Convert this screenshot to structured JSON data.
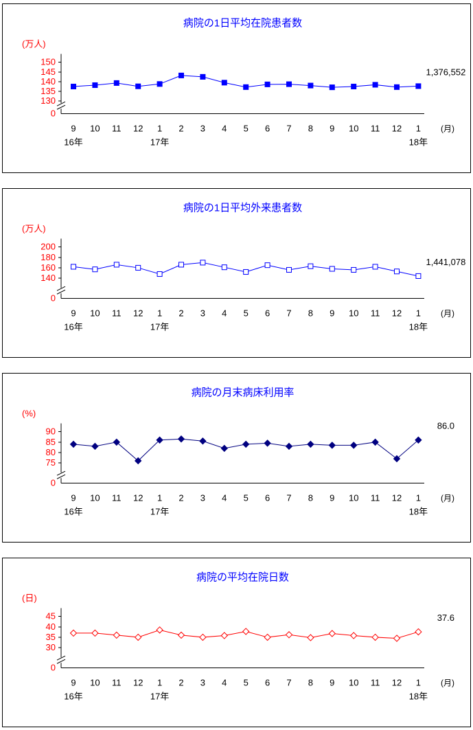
{
  "colors": {
    "title": "#0000ff",
    "axis": "#000000",
    "tick_label": "#ff0000",
    "month_label": "#000000",
    "annotation": "#000000"
  },
  "chart_data": [
    {
      "type": "line",
      "title": "病院の1日平均在院患者数",
      "y_unit": "(万人)",
      "x_unit": "(月)",
      "x": [
        "9",
        "10",
        "11",
        "12",
        "1",
        "2",
        "3",
        "4",
        "5",
        "6",
        "7",
        "8",
        "9",
        "10",
        "11",
        "12",
        "1"
      ],
      "year_labels": [
        {
          "index": 0,
          "label": "16年"
        },
        {
          "index": 4,
          "label": "17年"
        },
        {
          "index": 16,
          "label": "18年"
        }
      ],
      "values": [
        137.5,
        138.2,
        139.3,
        137.6,
        138.8,
        143.2,
        142.5,
        139.5,
        137.2,
        138.6,
        138.7,
        138.0,
        137.1,
        137.5,
        138.4,
        137.2,
        137.7
      ],
      "yticks": [
        150,
        145,
        140,
        135,
        130
      ],
      "zero_label": "0",
      "axis_break": true,
      "annotation": "1,376,552",
      "line_color": "#0000ff",
      "marker": "square-filled"
    },
    {
      "type": "line",
      "title": "病院の1日平均外来患者数",
      "y_unit": "(万人)",
      "x_unit": "(月)",
      "x": [
        "9",
        "10",
        "11",
        "12",
        "1",
        "2",
        "3",
        "4",
        "5",
        "6",
        "7",
        "8",
        "9",
        "10",
        "11",
        "12",
        "1"
      ],
      "year_labels": [
        {
          "index": 0,
          "label": "16年"
        },
        {
          "index": 4,
          "label": "17年"
        },
        {
          "index": 16,
          "label": "18年"
        }
      ],
      "values": [
        162,
        157,
        166,
        160,
        148,
        166,
        170,
        161,
        152,
        165,
        156,
        163,
        158,
        156,
        162,
        153,
        144.1
      ],
      "yticks": [
        200,
        180,
        160,
        140
      ],
      "zero_label": "0",
      "axis_break": true,
      "annotation": "1,441,078",
      "line_color": "#0000ff",
      "marker": "square-open"
    },
    {
      "type": "line",
      "title": "病院の月末病床利用率",
      "y_unit": "(%)",
      "x_unit": "(月)",
      "x": [
        "9",
        "10",
        "11",
        "12",
        "1",
        "2",
        "3",
        "4",
        "5",
        "6",
        "7",
        "8",
        "9",
        "10",
        "11",
        "12",
        "1"
      ],
      "year_labels": [
        {
          "index": 0,
          "label": "16年"
        },
        {
          "index": 4,
          "label": "17年"
        },
        {
          "index": 16,
          "label": "18年"
        }
      ],
      "values": [
        84,
        83,
        85,
        76,
        86,
        86.5,
        85.5,
        82,
        84,
        84.5,
        83,
        84,
        83.5,
        83.5,
        85,
        77,
        86.0
      ],
      "yticks": [
        90,
        85,
        80,
        75
      ],
      "zero_label": "0",
      "axis_break": true,
      "annotation": "86.0",
      "line_color": "#000080",
      "marker": "diamond-filled"
    },
    {
      "type": "line",
      "title": "病院の平均在院日数",
      "y_unit": "(日)",
      "x_unit": "(月)",
      "x": [
        "9",
        "10",
        "11",
        "12",
        "1",
        "2",
        "3",
        "4",
        "5",
        "6",
        "7",
        "8",
        "9",
        "10",
        "11",
        "12",
        "1"
      ],
      "year_labels": [
        {
          "index": 0,
          "label": "16年"
        },
        {
          "index": 4,
          "label": "17年"
        },
        {
          "index": 16,
          "label": "18年"
        }
      ],
      "values": [
        37,
        37,
        36,
        35,
        38.5,
        36,
        35,
        35.8,
        37.8,
        35,
        36.2,
        34.8,
        36.8,
        35.8,
        35,
        34.5,
        37.6
      ],
      "yticks": [
        45,
        40,
        35,
        30
      ],
      "zero_label": "0",
      "axis_break": true,
      "annotation": "37.6",
      "line_color": "#ff0000",
      "marker": "diamond-open"
    }
  ]
}
